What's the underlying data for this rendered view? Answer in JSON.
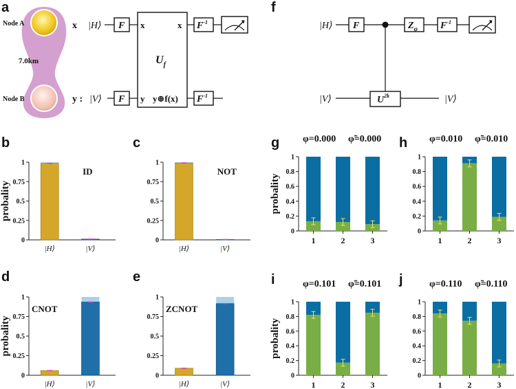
{
  "panel_labels": {
    "a": "a",
    "b": "b",
    "c": "c",
    "d": "d",
    "e": "e",
    "f": "f",
    "g": "g",
    "h": "h",
    "i": "i",
    "j": "j"
  },
  "panel_a": {
    "node_a": "Node A",
    "node_b": "Node B",
    "distance": "7.0km",
    "x_label": "x",
    "y_label": "y :",
    "ket_h": "|H⟩",
    "ket_v": "|V⟩",
    "gate_f": "F",
    "gate_finv": "F",
    "gate_finv_sup": "-1",
    "uf_label": "U",
    "uf_sub": "f",
    "uf_x_in": "x",
    "uf_x_out": "x",
    "uf_y_in": "y",
    "uf_y_out": "y⊕f(x)"
  },
  "panel_f": {
    "ket_h": "|H⟩",
    "ket_v_in": "|V⟩",
    "ket_v_out": "|V⟩",
    "gate_f": "F",
    "gate_z": "Z",
    "gate_z_sub": "φ",
    "gate_finv": "F",
    "gate_finv_sup": "-1",
    "gate_u": "U",
    "gate_u_sup": "2k"
  },
  "colors": {
    "gold": "#D4A62A",
    "blue": "#1F6FA8",
    "lightblue": "#A9D2EA",
    "green": "#79AE47",
    "teal": "#0B6EA3",
    "purple": "#D4A0CF",
    "error": "#E23BC7"
  },
  "chart_data": [
    {
      "id": "b",
      "type": "bar",
      "ylabel": "probality",
      "annotation": "ID",
      "categories": [
        "|H⟩",
        "|V⟩"
      ],
      "values": [
        0.985,
        0.01
      ],
      "ideal": [
        1.0,
        0.0
      ],
      "bar_colors": [
        "#D4A62A",
        "#1F6FA8"
      ],
      "yticks": [
        "0",
        "0.25",
        "0.5",
        "0.75",
        "1"
      ],
      "ylim": [
        0,
        1
      ]
    },
    {
      "id": "c",
      "type": "bar",
      "ylabel": "",
      "annotation": "NOT",
      "categories": [
        "|H⟩",
        "|V⟩"
      ],
      "values": [
        0.99,
        0.005
      ],
      "ideal": [
        1.0,
        0.0
      ],
      "bar_colors": [
        "#D4A62A",
        "#1F6FA8"
      ],
      "yticks": [
        "0",
        "0.25",
        "0.5",
        "0.75",
        "1"
      ],
      "ylim": [
        0,
        1
      ]
    },
    {
      "id": "d",
      "type": "bar",
      "ylabel": "probality",
      "annotation": "CNOT",
      "categories": [
        "|H⟩",
        "|V⟩"
      ],
      "values": [
        0.06,
        0.935
      ],
      "ideal": [
        0.0,
        1.0
      ],
      "bar_colors": [
        "#D4A62A",
        "#1F6FA8"
      ],
      "yticks": [
        "0",
        "0.25",
        "0.5",
        "0.75",
        "1"
      ],
      "ylim": [
        0,
        1
      ]
    },
    {
      "id": "e",
      "type": "bar",
      "ylabel": "",
      "annotation": "ZCNOT",
      "categories": [
        "|H⟩",
        "|V⟩"
      ],
      "values": [
        0.09,
        0.915
      ],
      "ideal": [
        0.0,
        1.0
      ],
      "bar_colors": [
        "#D4A62A",
        "#1F6FA8"
      ],
      "yticks": [
        "0",
        "0.25",
        "0.5",
        "0.75",
        "1"
      ],
      "ylim": [
        0,
        1
      ]
    },
    {
      "id": "g",
      "type": "bar",
      "stacked": true,
      "ylabel": "probality",
      "phi": "φ=0.000",
      "phi_est": "φ̃=0.000",
      "categories": [
        "1",
        "2",
        "3"
      ],
      "values": [
        0.13,
        0.12,
        0.09
      ],
      "yticks": [
        "0",
        "0.2",
        "0.4",
        "0.6",
        "0.8",
        "1"
      ],
      "ylim": [
        0,
        1
      ]
    },
    {
      "id": "h",
      "type": "bar",
      "stacked": true,
      "ylabel": "",
      "phi": "φ=0.010",
      "phi_est": "φ̃=0.010",
      "categories": [
        "1",
        "2",
        "3"
      ],
      "values": [
        0.14,
        0.91,
        0.19
      ],
      "yticks": [
        "0",
        "0.2",
        "0.4",
        "0.6",
        "0.8",
        "1"
      ],
      "ylim": [
        0,
        1
      ]
    },
    {
      "id": "i",
      "type": "bar",
      "stacked": true,
      "ylabel": "probality",
      "phi": "φ=0.101",
      "phi_est": "φ̃=0.101",
      "categories": [
        "1",
        "2",
        "3"
      ],
      "values": [
        0.82,
        0.17,
        0.85
      ],
      "yticks": [
        "0",
        "0.2",
        "0.4",
        "0.6",
        "0.8",
        "1"
      ],
      "ylim": [
        0,
        1
      ]
    },
    {
      "id": "j",
      "type": "bar",
      "stacked": true,
      "ylabel": "",
      "phi": "φ=0.110",
      "phi_est": "φ̃=0.110",
      "categories": [
        "1",
        "2",
        "3"
      ],
      "values": [
        0.84,
        0.74,
        0.16
      ],
      "yticks": [
        "0",
        "0.2",
        "0.4",
        "0.6",
        "0.8",
        "1"
      ],
      "ylim": [
        0,
        1
      ]
    }
  ]
}
